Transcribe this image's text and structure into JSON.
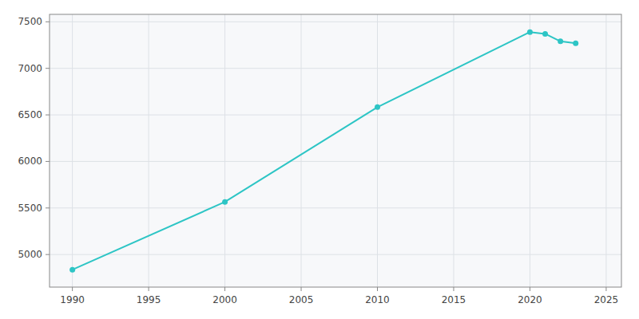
{
  "chart_data": {
    "type": "line",
    "x": [
      1990,
      2000,
      2010,
      2020,
      2021,
      2022,
      2023
    ],
    "values": [
      4837,
      5565,
      6583,
      7390,
      7371,
      7290,
      7270
    ],
    "color": "#2DC5C5",
    "marker": "circle",
    "xlim": [
      1988.5,
      2026
    ],
    "ylim": [
      4650,
      7580
    ],
    "xticks": [
      1990,
      1995,
      2000,
      2005,
      2010,
      2015,
      2020,
      2025
    ],
    "yticks": [
      5000,
      5500,
      6000,
      6500,
      7000,
      7500
    ],
    "grid": true
  }
}
